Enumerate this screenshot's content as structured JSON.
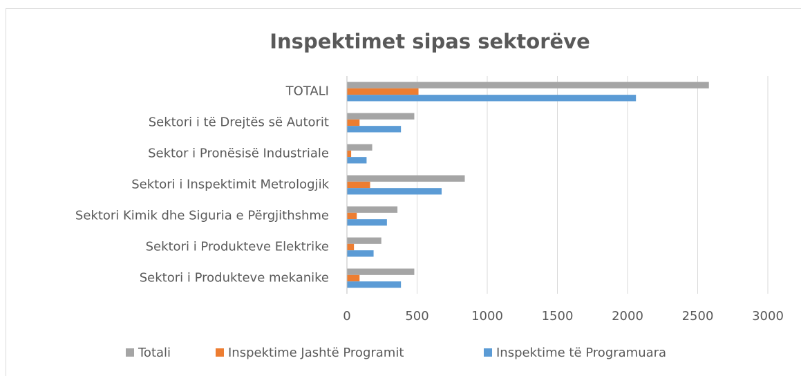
{
  "chart_data": {
    "type": "bar",
    "orientation": "horizontal",
    "title": "Inspektimet sipas sektorëve",
    "categories": [
      "TOTALI",
      "Sektori i të Drejtës së Autorit",
      "Sektor i Pronësisë Industriale",
      "Sektori i Inspektimit Metrologjik",
      "Sektori Kimik dhe Siguria e Përgjithshme",
      "Sektori i Produkteve Elektrike",
      "Sektori i Produkteve mekanike"
    ],
    "series": [
      {
        "name": "Totali",
        "color": "#a5a5a5",
        "values": [
          2580,
          480,
          180,
          840,
          360,
          245,
          480
        ]
      },
      {
        "name": "Inspektime Jashtë Programit",
        "color": "#ed7d31",
        "values": [
          510,
          90,
          30,
          165,
          70,
          50,
          90
        ]
      },
      {
        "name": "Inspektime të Programuara",
        "color": "#5b9bd5",
        "values": [
          2060,
          385,
          140,
          675,
          285,
          190,
          385
        ]
      }
    ],
    "xlim": [
      0,
      3000
    ],
    "xticks": [
      0,
      500,
      1000,
      1500,
      2000,
      2500,
      3000
    ],
    "grid": true,
    "legend": "bottom"
  }
}
